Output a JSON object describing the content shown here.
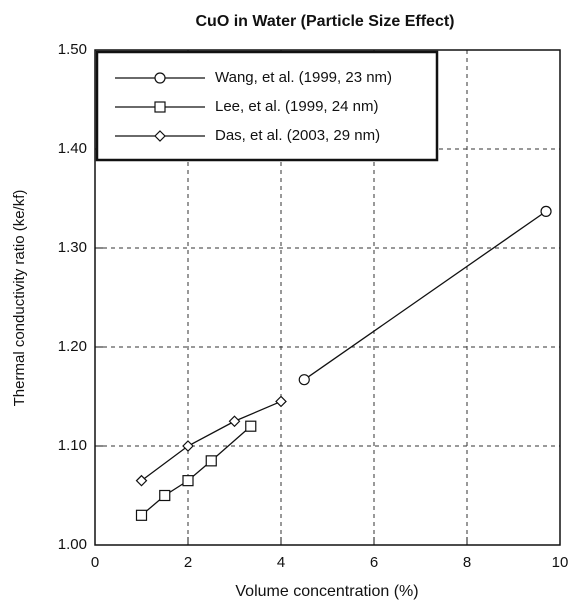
{
  "chart_data": {
    "type": "line",
    "title": "CuO in Water (Particle Size Effect)",
    "x_label": "Volume concentration (%)",
    "y_label": "Thermal conductivity ratio (ke/kf)",
    "xlim": [
      0,
      10
    ],
    "xticks": [
      0,
      2,
      4,
      6,
      8,
      10
    ],
    "ylim": [
      1,
      1.5
    ],
    "yticks": [
      {
        "value": 1,
        "label": "1.00"
      },
      {
        "value": 1.1,
        "label": "1.10"
      },
      {
        "value": 1.2,
        "label": "1.20"
      },
      {
        "value": 1.3,
        "label": "1.30"
      },
      {
        "value": 1.4,
        "label": "1.40"
      },
      {
        "value": 1.5,
        "label": "1.50"
      }
    ],
    "grid": true,
    "legend": "upper left",
    "series": [
      {
        "name": "Wang, et al. (1999, 23 nm)",
        "color": "#111111",
        "marker": "circle",
        "x": [
          4.5,
          9.7
        ],
        "values": [
          1.167,
          1.337
        ]
      },
      {
        "name": "Lee, et al. (1999, 24 nm)",
        "color": "#111111",
        "marker": "square",
        "x": [
          1,
          1.5,
          2,
          2.5,
          3.35
        ],
        "values": [
          1.03,
          1.05,
          1.065,
          1.085,
          1.12
        ]
      },
      {
        "name": "Das, et al. (2003, 29 nm)",
        "color": "#111111",
        "marker": "diamond",
        "x": [
          1,
          2,
          3,
          4
        ],
        "values": [
          1.065,
          1.1,
          1.125,
          1.145
        ]
      }
    ]
  }
}
